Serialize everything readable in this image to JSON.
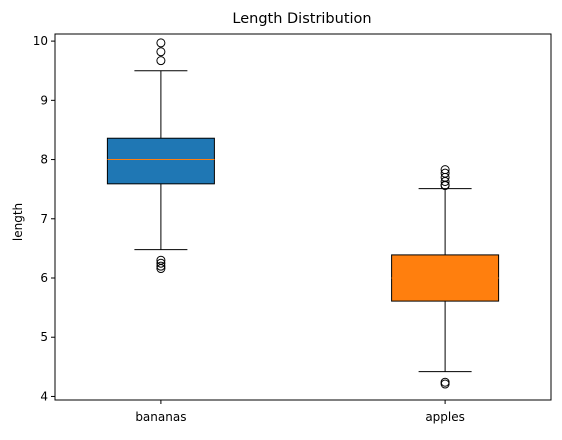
{
  "chart_data": {
    "type": "box",
    "title": "Length Distribution",
    "xlabel": "",
    "ylabel": "length",
    "ylim": [
      3.94,
      10.12
    ],
    "yticks": [
      4,
      5,
      6,
      7,
      8,
      9,
      10
    ],
    "ytick_labels": [
      "4",
      "5",
      "6",
      "7",
      "8",
      "9",
      "10"
    ],
    "categories": [
      "bananas",
      "apples"
    ],
    "grid": false,
    "series": [
      {
        "name": "bananas",
        "color": "#1f77b4",
        "median_color": "#ff7f0e",
        "whisker_low": 6.48,
        "q1": 7.59,
        "median": 8.0,
        "q3": 8.36,
        "whisker_high": 9.5,
        "outliers": [
          9.97,
          9.82,
          9.67,
          6.3,
          6.25,
          6.2,
          6.16
        ]
      },
      {
        "name": "apples",
        "color": "#ff7f0e",
        "median_color": "#ff7f0e",
        "whisker_low": 4.42,
        "q1": 5.61,
        "median": 6.0,
        "q3": 6.39,
        "whisker_high": 7.51,
        "outliers": [
          7.83,
          7.77,
          7.7,
          7.63,
          7.57,
          7.56,
          4.24,
          4.21
        ]
      }
    ]
  }
}
